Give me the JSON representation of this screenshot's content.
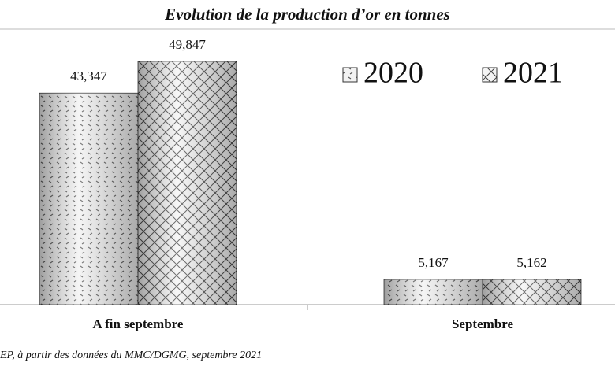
{
  "chart_data": {
    "type": "bar",
    "title": "Evolution de la production d’or en tonnes",
    "categories": [
      "A fin septembre",
      "Septembre"
    ],
    "series": [
      {
        "name": "2020",
        "values": [
          43.347,
          5.167
        ],
        "value_labels": [
          "43,347",
          "5,167"
        ]
      },
      {
        "name": "2021",
        "values": [
          49.847,
          5.162
        ],
        "value_labels": [
          "49,847",
          "5,162"
        ]
      }
    ],
    "legend": "top-right",
    "source": "EP, à partir des données du MMC/DGMG, septembre 2021"
  }
}
